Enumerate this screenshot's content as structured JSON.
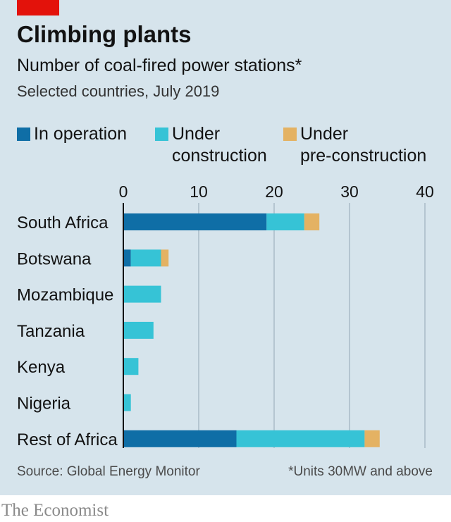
{
  "header": {
    "title": "Climbing plants",
    "subtitle": "Number of coal-fired power stations*",
    "subsubtitle": "Selected countries, July 2019"
  },
  "legend": [
    {
      "label": "In operation",
      "color": "#0f6ea6"
    },
    {
      "label": "Under\nconstruction",
      "color": "#36c3d6"
    },
    {
      "label": "Under\npre-construction",
      "color": "#e4b263"
    }
  ],
  "chart_data": {
    "type": "bar",
    "orientation": "horizontal",
    "stacked": true,
    "categories": [
      "South Africa",
      "Botswana",
      "Mozambique",
      "Tanzania",
      "Kenya",
      "Nigeria",
      "Rest of Africa"
    ],
    "series": [
      {
        "name": "In operation",
        "color": "#0f6ea6",
        "values": [
          19,
          1,
          0,
          0,
          0,
          0,
          15
        ]
      },
      {
        "name": "Under construction",
        "color": "#36c3d6",
        "values": [
          5,
          4,
          5,
          4,
          2,
          1,
          17
        ]
      },
      {
        "name": "Under pre-construction",
        "color": "#e4b263",
        "values": [
          2,
          1,
          0,
          0,
          0,
          0,
          2
        ]
      }
    ],
    "xlim": [
      0,
      40
    ],
    "xticks": [
      0,
      10,
      20,
      30,
      40
    ],
    "grid": true,
    "legend_position": "top"
  },
  "footer": {
    "source": "Source: Global Energy Monitor",
    "note": "*Units 30MW and above"
  },
  "brand": "The Economist"
}
